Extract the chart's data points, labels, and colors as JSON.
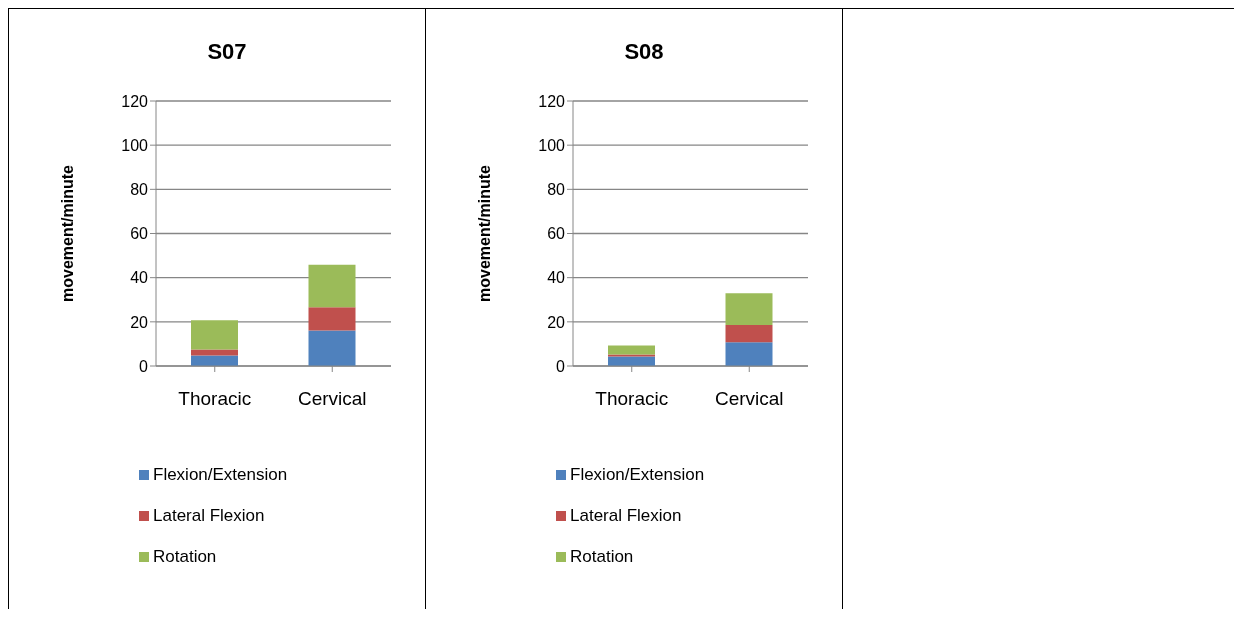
{
  "chart_data": [
    {
      "type": "bar",
      "title": "S07",
      "ylabel": "movement/minute",
      "categories": [
        "Thoracic",
        "Cervical"
      ],
      "stacked": true,
      "ylim": [
        0,
        120
      ],
      "yticks": [
        0,
        20,
        40,
        60,
        80,
        100,
        120
      ],
      "grid": "y",
      "legend": "bottom",
      "series": [
        {
          "name": "Flexion/Extension",
          "color": "#4f81bd",
          "values": [
            4.7,
            16.1
          ]
        },
        {
          "name": "Lateral Flexion",
          "color": "#c0504d",
          "values": [
            2.8,
            10.5
          ]
        },
        {
          "name": "Rotation",
          "color": "#9bbb59",
          "values": [
            13.2,
            19.2
          ]
        }
      ]
    },
    {
      "type": "bar",
      "title": "S08",
      "ylabel": "movement/minute",
      "categories": [
        "Thoracic",
        "Cervical"
      ],
      "stacked": true,
      "ylim": [
        0,
        120
      ],
      "yticks": [
        0,
        20,
        40,
        60,
        80,
        100,
        120
      ],
      "grid": "y",
      "legend": "bottom",
      "series": [
        {
          "name": "Flexion/Extension",
          "color": "#4f81bd",
          "values": [
            4.3,
            10.8
          ]
        },
        {
          "name": "Lateral Flexion",
          "color": "#c0504d",
          "values": [
            0.9,
            7.8
          ]
        },
        {
          "name": "Rotation",
          "color": "#9bbb59",
          "values": [
            4.1,
            14.4
          ]
        }
      ]
    }
  ]
}
